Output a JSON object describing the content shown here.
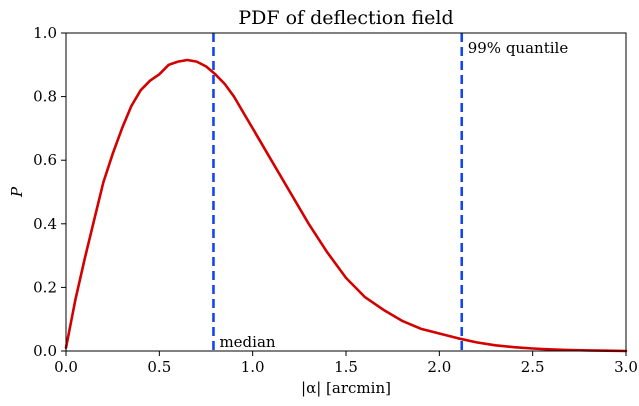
{
  "chart_data": {
    "type": "line",
    "title": "PDF of deflection field",
    "xlabel": "|α| [arcmin]",
    "ylabel": "P",
    "xlim": [
      0.0,
      3.0
    ],
    "ylim": [
      0.0,
      1.0
    ],
    "xticks": [
      "0.0",
      "0.5",
      "1.0",
      "1.5",
      "2.0",
      "2.5",
      "3.0"
    ],
    "yticks": [
      "0.0",
      "0.2",
      "0.4",
      "0.6",
      "0.8",
      "1.0"
    ],
    "grid": false,
    "series": [
      {
        "color": "#d40000",
        "x": [
          0.0,
          0.05,
          0.1,
          0.15,
          0.2,
          0.25,
          0.3,
          0.35,
          0.4,
          0.45,
          0.5,
          0.55,
          0.6,
          0.65,
          0.7,
          0.75,
          0.8,
          0.85,
          0.9,
          0.95,
          1.0,
          1.1,
          1.2,
          1.3,
          1.4,
          1.5,
          1.6,
          1.7,
          1.8,
          1.9,
          2.0,
          2.1,
          2.2,
          2.3,
          2.4,
          2.5,
          2.6,
          2.7,
          2.8,
          2.9,
          3.0
        ],
        "y": [
          0.01,
          0.16,
          0.29,
          0.41,
          0.53,
          0.62,
          0.7,
          0.77,
          0.82,
          0.85,
          0.87,
          0.9,
          0.91,
          0.915,
          0.91,
          0.895,
          0.87,
          0.84,
          0.8,
          0.75,
          0.7,
          0.6,
          0.5,
          0.4,
          0.31,
          0.23,
          0.17,
          0.13,
          0.095,
          0.07,
          0.055,
          0.04,
          0.027,
          0.018,
          0.012,
          0.008,
          0.005,
          0.003,
          0.002,
          0.001,
          0.0
        ]
      }
    ],
    "vlines": [
      {
        "x": 0.79,
        "label": "median",
        "label_position": "bottom",
        "color": "#1446f0",
        "style": "dashed"
      },
      {
        "x": 2.12,
        "label": "99% quantile",
        "label_position": "top",
        "color": "#1446f0",
        "style": "dashed"
      }
    ]
  }
}
